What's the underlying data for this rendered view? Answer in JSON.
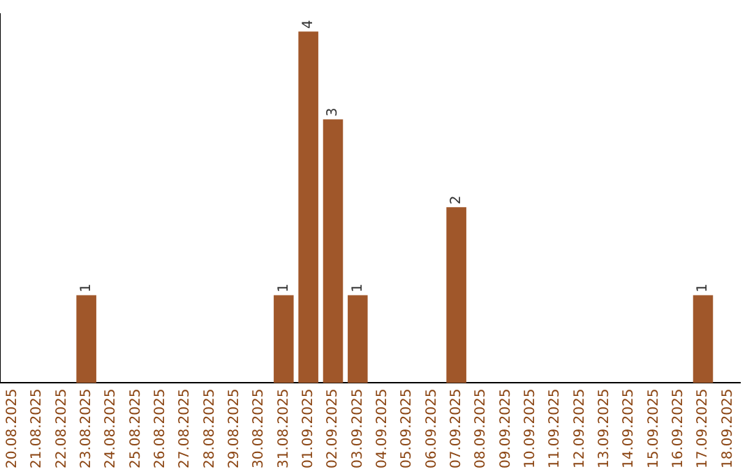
{
  "chart_data": {
    "type": "bar",
    "categories": [
      "20.08.2025",
      "21.08.2025",
      "22.08.2025",
      "23.08.2025",
      "24.08.2025",
      "25.08.2025",
      "26.08.2025",
      "27.08.2025",
      "28.08.2025",
      "29.08.2025",
      "30.08.2025",
      "31.08.2025",
      "01.09.2025",
      "02.09.2025",
      "03.09.2025",
      "04.09.2025",
      "05.09.2025",
      "06.09.2025",
      "07.09.2025",
      "08.09.2025",
      "09.09.2025",
      "10.09.2025",
      "11.09.2025",
      "12.09.2025",
      "13.09.2025",
      "14.09.2025",
      "15.09.2025",
      "16.09.2025",
      "17.09.2025",
      "18.09.2025"
    ],
    "values": [
      0,
      0,
      0,
      1,
      0,
      0,
      0,
      0,
      0,
      0,
      0,
      1,
      4,
      3,
      1,
      0,
      0,
      0,
      2,
      0,
      0,
      0,
      0,
      0,
      0,
      0,
      0,
      0,
      1,
      0
    ],
    "value_labels": [
      null,
      null,
      null,
      "1",
      null,
      null,
      null,
      null,
      null,
      null,
      null,
      "1",
      "4",
      "3",
      "1",
      null,
      null,
      null,
      "2",
      null,
      null,
      null,
      null,
      null,
      null,
      null,
      null,
      null,
      "1",
      null
    ],
    "color": "#a0572a",
    "ylim": [
      0,
      4.2
    ],
    "tick_labels": "x",
    "grid": false,
    "legend": false
  }
}
